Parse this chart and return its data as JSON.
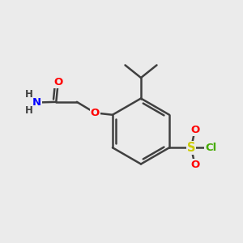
{
  "background_color": "#ebebeb",
  "bond_color": "#404040",
  "bond_width": 1.8,
  "atom_colors": {
    "O": "#ff0000",
    "N": "#0000ff",
    "S": "#cccc00",
    "Cl": "#44aa00",
    "C": "#404040",
    "H": "#404040"
  },
  "font_size": 9.5
}
